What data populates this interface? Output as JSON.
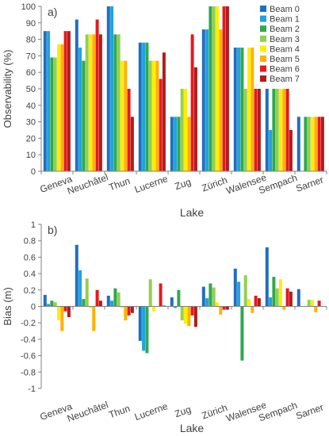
{
  "chart_data": [
    {
      "panel_label": "a)",
      "type": "bar",
      "ylabel": "Observability (%)",
      "xlabel": "Lake",
      "ylim": [
        0,
        100
      ],
      "yticks": [
        0,
        10,
        20,
        30,
        40,
        50,
        60,
        70,
        80,
        90,
        100
      ],
      "grid": false,
      "legend_position": "right",
      "categories": [
        "Geneva",
        "Neuchâtel",
        "Thun",
        "Lucerne",
        "Zug",
        "Zürich",
        "Walensee",
        "Sempach",
        "Sarner"
      ],
      "series": [
        {
          "name": "Beam 0",
          "color": "#1f6fbf",
          "values": [
            85,
            92,
            100,
            78,
            33,
            86,
            75,
            50,
            33
          ]
        },
        {
          "name": "Beam 1",
          "color": "#1fa3e0",
          "values": [
            85,
            75,
            100,
            78,
            33,
            86,
            75,
            25,
            0
          ]
        },
        {
          "name": "Beam 2",
          "color": "#2fa84f",
          "values": [
            69,
            67,
            83,
            78,
            33,
            100,
            75,
            50,
            33
          ]
        },
        {
          "name": "Beam 3",
          "color": "#92d050",
          "values": [
            69,
            83,
            83,
            67,
            50,
            100,
            50,
            50,
            33
          ]
        },
        {
          "name": "Beam 4",
          "color": "#ffee00",
          "values": [
            77,
            83,
            67,
            67,
            50,
            100,
            75,
            50,
            33
          ]
        },
        {
          "name": "Beam 5",
          "color": "#ffb000",
          "values": [
            77,
            83,
            67,
            67,
            33,
            86,
            75,
            50,
            33
          ]
        },
        {
          "name": "Beam 6",
          "color": "#e31a1c",
          "values": [
            85,
            92,
            50,
            56,
            83,
            100,
            50,
            50,
            33
          ]
        },
        {
          "name": "Beam 7",
          "color": "#b31b1b",
          "values": [
            85,
            83,
            33,
            72,
            63,
            100,
            50,
            25,
            33
          ]
        }
      ]
    },
    {
      "panel_label": "b)",
      "type": "bar",
      "ylabel": "Bias (m)",
      "xlabel": "Lake",
      "ylim": [
        -1,
        1
      ],
      "yticks": [
        -1,
        -0.8,
        -0.6,
        -0.4,
        -0.2,
        0,
        0.2,
        0.4,
        0.6,
        0.8,
        1
      ],
      "grid": false,
      "categories": [
        "Geneva",
        "Neuchâtel",
        "Thun",
        "Lucerne",
        "Zug",
        "Zürich",
        "Walensee",
        "Sempach",
        "Sarner"
      ],
      "series": [
        {
          "name": "Beam 0",
          "color": "#1f6fbf",
          "values": [
            0.14,
            0.75,
            0.13,
            -0.42,
            0.11,
            0.24,
            0.46,
            0.72,
            0.21
          ]
        },
        {
          "name": "Beam 1",
          "color": "#1fa3e0",
          "values": [
            0.03,
            0.44,
            0.07,
            -0.54,
            -0.02,
            0.1,
            0.3,
            0.11,
            0.0
          ]
        },
        {
          "name": "Beam 2",
          "color": "#2fa84f",
          "values": [
            0.07,
            0.09,
            0.22,
            -0.57,
            0.2,
            0.28,
            -0.66,
            0.36,
            0.0
          ]
        },
        {
          "name": "Beam 3",
          "color": "#92d050",
          "values": [
            0.05,
            0.34,
            0.17,
            0.33,
            -0.17,
            0.23,
            0.38,
            0.22,
            0.08
          ]
        },
        {
          "name": "Beam 4",
          "color": "#ffee00",
          "values": [
            -0.17,
            -0.02,
            -0.02,
            -0.06,
            -0.21,
            0.05,
            0.09,
            0.33,
            0.08
          ]
        },
        {
          "name": "Beam 5",
          "color": "#ffb000",
          "values": [
            -0.3,
            -0.3,
            -0.17,
            0.0,
            -0.24,
            -0.1,
            -0.08,
            -0.04,
            -0.07
          ]
        },
        {
          "name": "Beam 6",
          "color": "#e31a1c",
          "values": [
            -0.06,
            0.2,
            -0.11,
            0.28,
            -0.11,
            -0.04,
            0.13,
            0.22,
            0.07
          ]
        },
        {
          "name": "Beam 7",
          "color": "#b31b1b",
          "values": [
            -0.13,
            0.07,
            -0.08,
            0.01,
            -0.25,
            -0.04,
            0.1,
            0.18,
            0.0
          ]
        }
      ]
    }
  ]
}
